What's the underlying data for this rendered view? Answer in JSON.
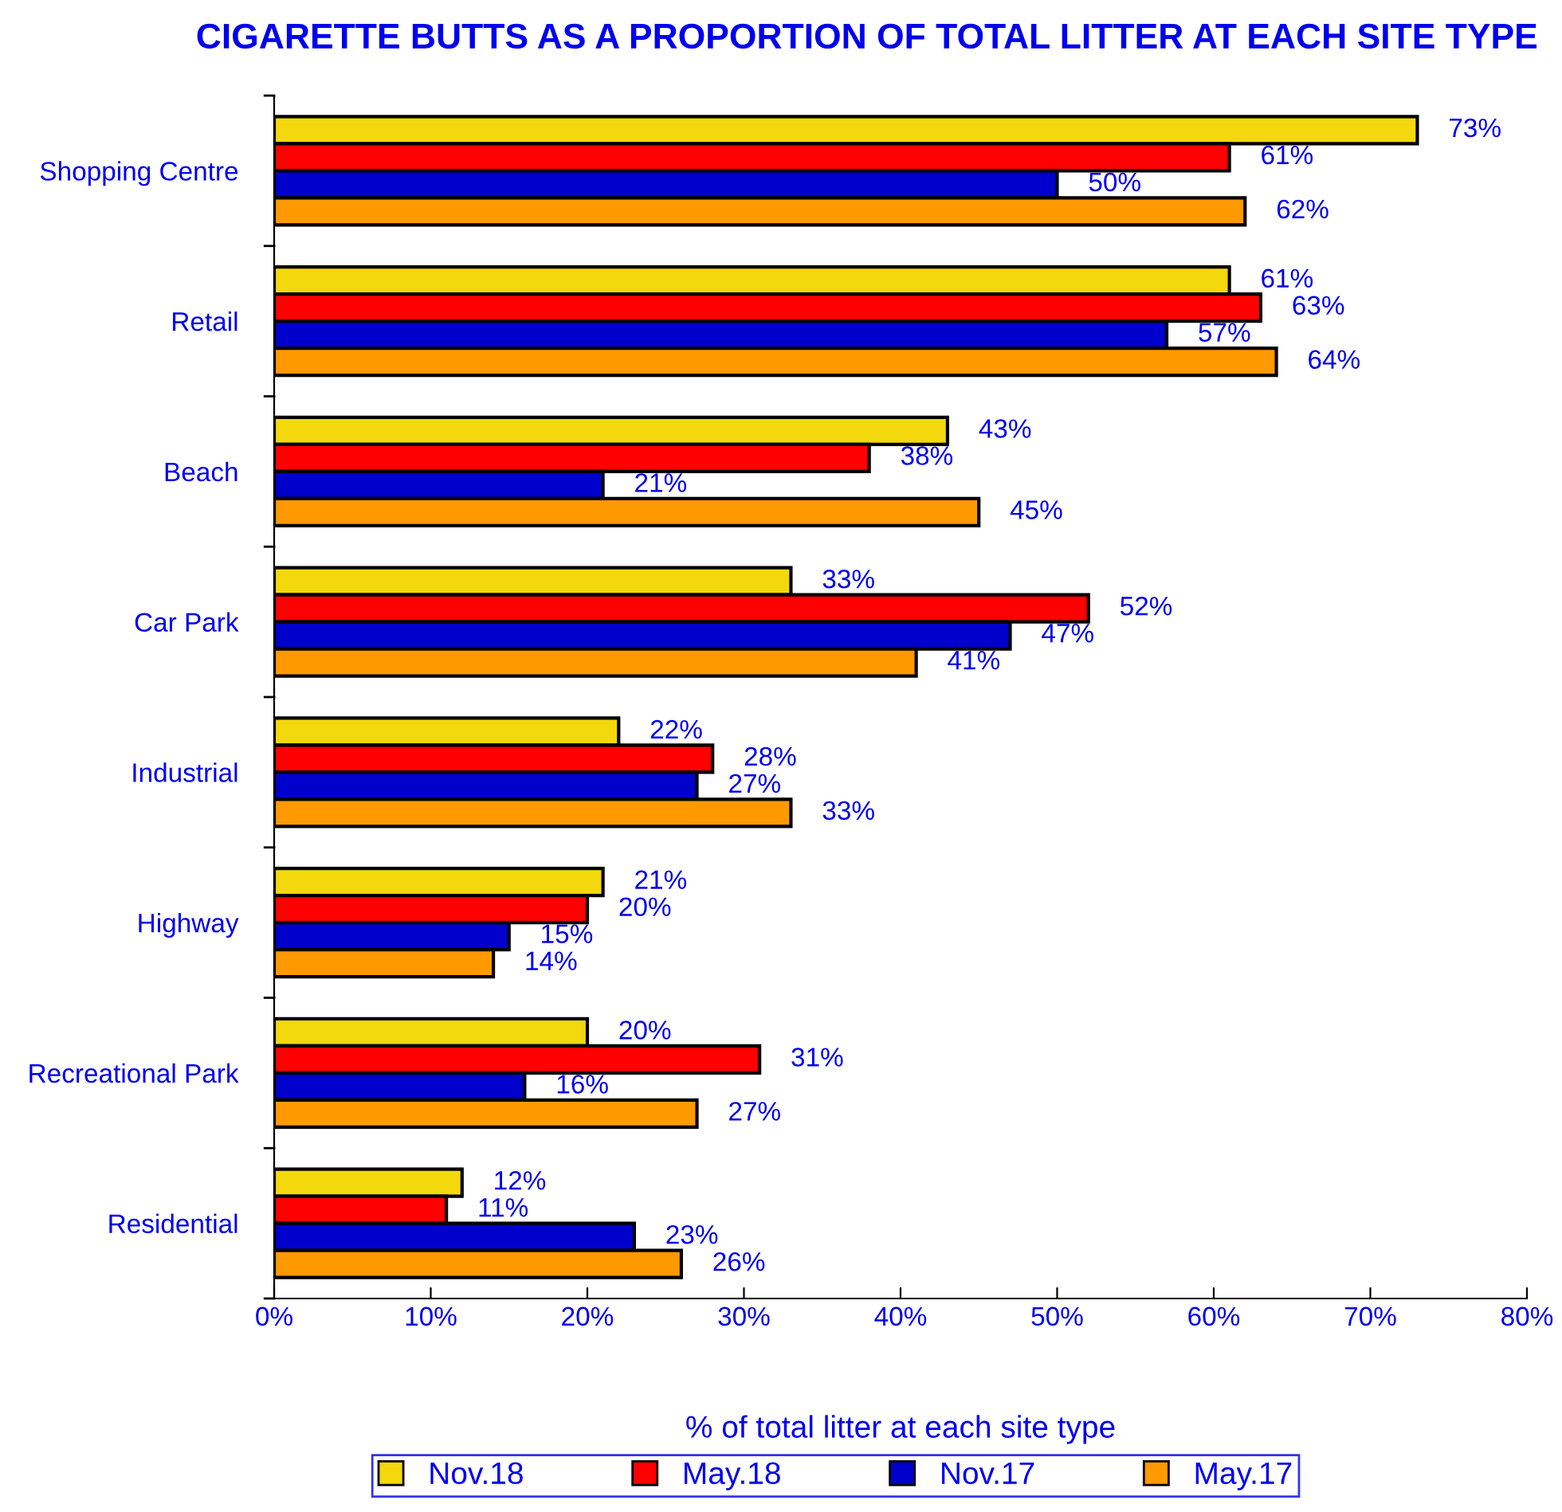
{
  "chart_data": {
    "type": "bar",
    "orientation": "horizontal",
    "title": "CIGARETTE BUTTS AS A PROPORTION OF TOTAL LITTER AT EACH SITE TYPE",
    "xlabel": "% of total litter at each site type",
    "categories": [
      "Shopping Centre",
      "Retail",
      "Beach",
      "Car Park",
      "Industrial",
      "Highway",
      "Recreational Park",
      "Residential"
    ],
    "series": [
      {
        "name": "Nov.18",
        "color": "#f2d80c",
        "values": [
          73,
          61,
          43,
          33,
          22,
          21,
          20,
          12
        ],
        "value_labels": [
          "73%",
          "61%",
          "43%",
          "33%",
          "22%",
          "21%",
          "20%",
          "12%"
        ]
      },
      {
        "name": "May.18",
        "color": "#ff0000",
        "values": [
          61,
          63,
          38,
          52,
          28,
          20,
          31,
          11
        ],
        "value_labels": [
          "61%",
          "63%",
          "38%",
          "52%",
          "28%",
          "20%",
          "31%",
          "11%"
        ]
      },
      {
        "name": "Nov.17",
        "color": "#0000cc",
        "values": [
          50,
          57,
          21,
          47,
          27,
          15,
          16,
          23
        ],
        "value_labels": [
          "50%",
          "57%",
          "21%",
          "47%",
          "27%",
          "15%",
          "16%",
          "23%"
        ]
      },
      {
        "name": "May.17",
        "color": "#ff9900",
        "values": [
          62,
          64,
          45,
          41,
          33,
          14,
          27,
          26
        ],
        "value_labels": [
          "62%",
          "64%",
          "45%",
          "41%",
          "33%",
          "14%",
          "27%",
          "26%"
        ]
      }
    ],
    "xlim": [
      0,
      80
    ],
    "xticks": [
      {
        "value": 0,
        "label": "0%"
      },
      {
        "value": 10,
        "label": "10%"
      },
      {
        "value": 20,
        "label": "20%"
      },
      {
        "value": 30,
        "label": "30%"
      },
      {
        "value": 40,
        "label": "40%"
      },
      {
        "value": 50,
        "label": "50%"
      },
      {
        "value": 60,
        "label": "60%"
      },
      {
        "value": 70,
        "label": "70%"
      },
      {
        "value": 80,
        "label": "80%"
      }
    ],
    "grid": false,
    "legend": "bottom"
  }
}
